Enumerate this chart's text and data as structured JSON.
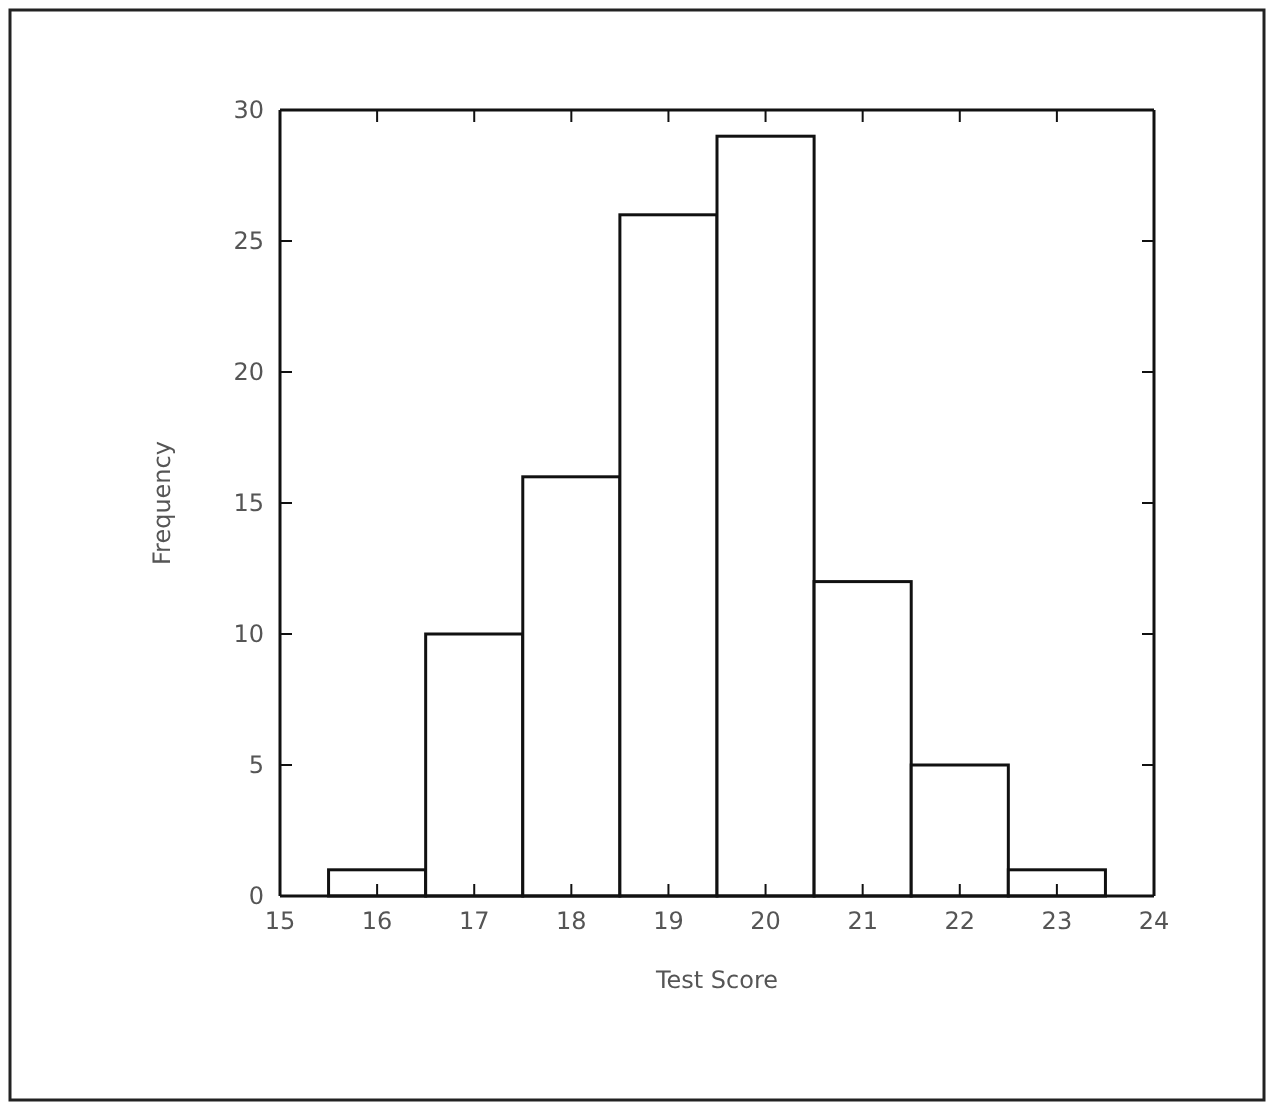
{
  "chart_data": {
    "type": "histogram",
    "xlabel": "Test Score",
    "ylabel": "Frequency",
    "bins": [
      15.5,
      16.5,
      17.5,
      18.5,
      19.5,
      20.5,
      21.5,
      22.5,
      23.5
    ],
    "values": [
      1,
      10,
      16,
      26,
      29,
      12,
      5,
      1
    ],
    "color": "#ffffff",
    "xlim": [
      15,
      24
    ],
    "xticks": [
      15,
      16,
      17,
      18,
      19,
      20,
      21,
      22,
      23,
      24
    ],
    "ylim": [
      0,
      30
    ],
    "yticks": [
      0,
      5,
      10,
      15,
      20,
      25,
      30
    ],
    "grid": false
  }
}
